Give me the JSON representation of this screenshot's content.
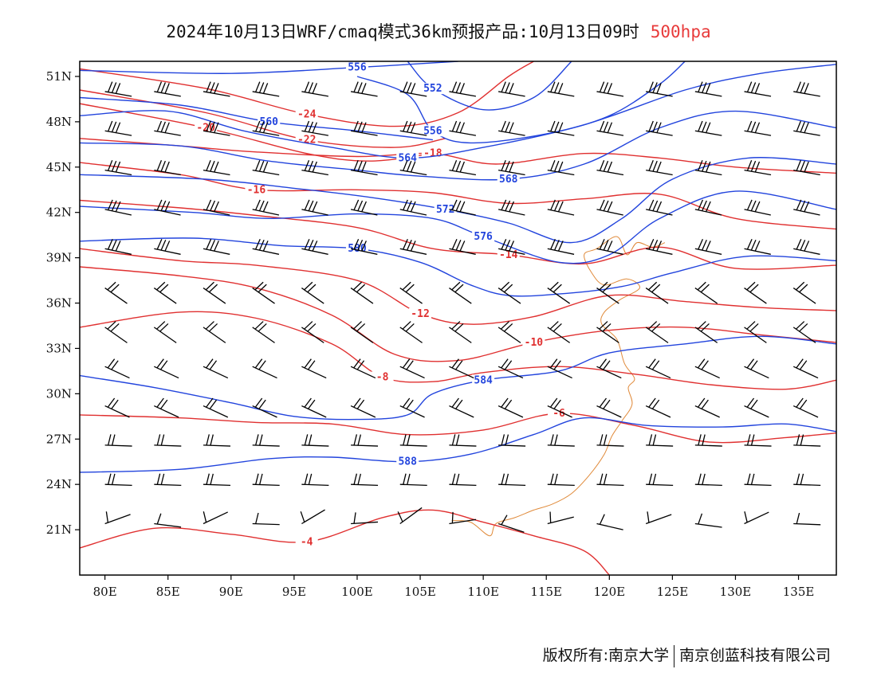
{
  "title": {
    "main": "2024年10月13日WRF/cmaq模式36km预报产品:10月13日09时",
    "level": "500hpa"
  },
  "credit": {
    "left": "版权所有:南京大学",
    "right": "南京创蓝科技有限公司"
  },
  "map": {
    "lon_range": [
      78,
      138
    ],
    "lat_range": [
      18,
      52
    ],
    "x_ticks": [
      {
        "value": 80,
        "label": "80E"
      },
      {
        "value": 85,
        "label": "85E"
      },
      {
        "value": 90,
        "label": "90E"
      },
      {
        "value": 95,
        "label": "95E"
      },
      {
        "value": 100,
        "label": "100E"
      },
      {
        "value": 105,
        "label": "105E"
      },
      {
        "value": 110,
        "label": "110E"
      },
      {
        "value": 115,
        "label": "115E"
      },
      {
        "value": 120,
        "label": "120E"
      },
      {
        "value": 125,
        "label": "125E"
      },
      {
        "value": 130,
        "label": "130E"
      },
      {
        "value": 135,
        "label": "135E"
      }
    ],
    "y_ticks": [
      {
        "value": 21,
        "label": "21N"
      },
      {
        "value": 24,
        "label": "24N"
      },
      {
        "value": 27,
        "label": "27N"
      },
      {
        "value": 30,
        "label": "30N"
      },
      {
        "value": 33,
        "label": "33N"
      },
      {
        "value": 36,
        "label": "36N"
      },
      {
        "value": 39,
        "label": "39N"
      },
      {
        "value": 42,
        "label": "42N"
      },
      {
        "value": 45,
        "label": "45N"
      },
      {
        "value": 48,
        "label": "48N"
      },
      {
        "value": 51,
        "label": "51N"
      }
    ],
    "colors": {
      "height": "#2244dd",
      "temperature": "#e03030",
      "boundary": "#e08a3a",
      "wind": "#000000"
    },
    "height_contours": [
      {
        "value": "556",
        "points": [
          [
            78,
            51.4
          ],
          [
            90,
            51.2
          ],
          [
            100,
            51.6
          ],
          [
            108,
            52
          ]
        ]
      },
      {
        "value": "552",
        "points": [
          [
            104,
            52
          ],
          [
            106,
            50.2
          ],
          [
            110,
            48.8
          ],
          [
            114,
            49.6
          ],
          [
            117,
            52
          ]
        ]
      },
      {
        "value": "556",
        "points": [
          [
            100,
            51
          ],
          [
            104,
            49.8
          ],
          [
            106,
            47.4
          ],
          [
            109,
            46.6
          ],
          [
            115,
            47.2
          ],
          [
            120,
            48.4
          ],
          [
            124,
            50.5
          ],
          [
            126,
            52
          ]
        ]
      },
      {
        "value": "560",
        "points": [
          [
            78,
            49.6
          ],
          [
            86,
            49.1
          ],
          [
            93,
            48
          ],
          [
            100,
            47.4
          ],
          [
            106,
            46.8
          ]
        ]
      },
      {
        "value": "564",
        "points": [
          [
            78,
            48.4
          ],
          [
            85,
            48.7
          ],
          [
            91,
            47.4
          ],
          [
            98,
            46.3
          ],
          [
            104,
            45.6
          ],
          [
            110,
            46.3
          ],
          [
            118,
            47.8
          ],
          [
            126,
            50.1
          ],
          [
            132,
            51.2
          ],
          [
            138,
            51.8
          ]
        ]
      },
      {
        "value": "568",
        "points": [
          [
            78,
            46.6
          ],
          [
            86,
            46.4
          ],
          [
            93,
            45.4
          ],
          [
            100,
            44.8
          ],
          [
            105,
            44.4
          ],
          [
            112,
            44.2
          ],
          [
            118,
            45.2
          ],
          [
            124,
            47.6
          ],
          [
            130,
            48.7
          ],
          [
            138,
            47.6
          ]
        ]
      },
      {
        "value": "572",
        "points": [
          [
            78,
            44.5
          ],
          [
            88,
            44.2
          ],
          [
            95,
            43.6
          ],
          [
            101,
            43
          ],
          [
            107,
            42.2
          ],
          [
            112,
            41.3
          ],
          [
            117,
            40
          ],
          [
            121,
            41.6
          ],
          [
            125,
            44.2
          ],
          [
            131,
            45.6
          ],
          [
            138,
            45.2
          ]
        ]
      },
      {
        "value": "576",
        "points": [
          [
            78,
            42.4
          ],
          [
            87,
            42
          ],
          [
            93,
            41.6
          ],
          [
            100,
            41.9
          ],
          [
            106,
            41.6
          ],
          [
            110,
            40.4
          ],
          [
            116,
            38.7
          ],
          [
            120,
            39.2
          ],
          [
            124,
            41.6
          ],
          [
            130,
            43.4
          ],
          [
            138,
            42.2
          ]
        ]
      },
      {
        "value": "580",
        "points": [
          [
            78,
            40.1
          ],
          [
            87,
            40.3
          ],
          [
            94,
            39.8
          ],
          [
            100,
            39.6
          ],
          [
            105,
            38.7
          ],
          [
            109,
            37.2
          ],
          [
            112,
            36.5
          ],
          [
            116,
            36.6
          ],
          [
            121,
            37.1
          ],
          [
            125,
            38
          ],
          [
            131,
            39.1
          ],
          [
            138,
            38.8
          ]
        ]
      },
      {
        "value": "584",
        "points": [
          [
            78,
            31.2
          ],
          [
            84,
            30.4
          ],
          [
            90,
            29.4
          ],
          [
            95,
            28.5
          ],
          [
            100,
            28.3
          ],
          [
            104,
            28.6
          ],
          [
            106,
            30
          ],
          [
            110,
            30.9
          ],
          [
            116,
            31.5
          ],
          [
            120,
            32.7
          ],
          [
            126,
            33.3
          ],
          [
            132,
            33.8
          ],
          [
            138,
            33.3
          ]
        ]
      },
      {
        "value": "588",
        "points": [
          [
            78,
            24.8
          ],
          [
            86,
            25
          ],
          [
            93,
            25.7
          ],
          [
            98,
            25.8
          ],
          [
            104,
            25.5
          ],
          [
            109,
            26
          ],
          [
            114,
            27.3
          ],
          [
            118,
            28.4
          ],
          [
            123,
            27.9
          ],
          [
            129,
            27.8
          ],
          [
            134,
            28
          ],
          [
            138,
            27.5
          ]
        ]
      }
    ],
    "temperature_contours": [
      {
        "value": "-24",
        "points": [
          [
            78,
            51.5
          ],
          [
            88,
            50.2
          ],
          [
            96,
            48.5
          ],
          [
            103,
            47.7
          ],
          [
            108,
            48.6
          ],
          [
            112,
            51
          ],
          [
            114,
            52
          ]
        ]
      },
      {
        "value": "-22",
        "points": [
          [
            78,
            50.1
          ],
          [
            88,
            48.6
          ],
          [
            96,
            46.8
          ],
          [
            103,
            46.3
          ],
          [
            107,
            46.9
          ]
        ]
      },
      {
        "value": "-20",
        "points": [
          [
            78,
            49.2
          ],
          [
            88,
            47.6
          ],
          [
            96,
            45.9
          ],
          [
            101,
            45.4
          ],
          [
            106,
            45.9
          ]
        ]
      },
      {
        "value": "-18",
        "points": [
          [
            78,
            46.9
          ],
          [
            86,
            46.4
          ],
          [
            92,
            46
          ],
          [
            100,
            45.7
          ],
          [
            106,
            45.9
          ],
          [
            111,
            45.2
          ],
          [
            118,
            45.9
          ],
          [
            124,
            45.6
          ],
          [
            130,
            45
          ],
          [
            138,
            44.6
          ]
        ]
      },
      {
        "value": "-16",
        "points": [
          [
            78,
            45.3
          ],
          [
            86,
            44.5
          ],
          [
            92,
            43.5
          ],
          [
            100,
            43.5
          ],
          [
            106,
            43.3
          ],
          [
            112,
            42.6
          ],
          [
            118,
            42.9
          ],
          [
            124,
            43.2
          ],
          [
            130,
            41.6
          ],
          [
            138,
            40.9
          ]
        ]
      },
      {
        "value": "-14",
        "points": [
          [
            78,
            42.8
          ],
          [
            86,
            42.3
          ],
          [
            92,
            41.8
          ],
          [
            100,
            41
          ],
          [
            106,
            39.6
          ],
          [
            112,
            39.2
          ],
          [
            118,
            38.6
          ],
          [
            124,
            39.7
          ],
          [
            130,
            38.3
          ],
          [
            138,
            38.5
          ]
        ]
      },
      {
        "value": "-12",
        "points": [
          [
            78,
            39.6
          ],
          [
            86,
            38.8
          ],
          [
            92,
            38.5
          ],
          [
            100,
            37.5
          ],
          [
            105,
            35.3
          ],
          [
            109,
            34.6
          ],
          [
            114,
            35.1
          ],
          [
            120,
            36.5
          ],
          [
            126,
            36.1
          ],
          [
            132,
            35.7
          ],
          [
            138,
            35.5
          ]
        ]
      },
      {
        "value": "-10",
        "points": [
          [
            78,
            38.4
          ],
          [
            86,
            37.8
          ],
          [
            92,
            37
          ],
          [
            98,
            35.2
          ],
          [
            103,
            32.6
          ],
          [
            108,
            32.2
          ],
          [
            114,
            33.4
          ],
          [
            120,
            34.2
          ],
          [
            126,
            34.4
          ],
          [
            132,
            33.9
          ],
          [
            138,
            33.4
          ]
        ]
      },
      {
        "value": "-8",
        "points": [
          [
            78,
            34.4
          ],
          [
            86,
            35.4
          ],
          [
            92,
            35
          ],
          [
            98,
            33.3
          ],
          [
            102,
            31.1
          ],
          [
            106,
            30.8
          ],
          [
            110,
            31.4
          ],
          [
            116,
            31.8
          ],
          [
            122,
            31.3
          ],
          [
            128,
            30.6
          ],
          [
            134,
            30.3
          ],
          [
            138,
            30.9
          ]
        ]
      },
      {
        "value": "-6",
        "points": [
          [
            78,
            28.6
          ],
          [
            86,
            28.4
          ],
          [
            92,
            28.1
          ],
          [
            98,
            28
          ],
          [
            104,
            27.3
          ],
          [
            110,
            27.6
          ],
          [
            116,
            28.7
          ],
          [
            122,
            27.9
          ],
          [
            128,
            26.8
          ],
          [
            134,
            27.1
          ],
          [
            138,
            27.4
          ]
        ]
      },
      {
        "value": "-4",
        "points": [
          [
            78,
            19.8
          ],
          [
            84,
            21.1
          ],
          [
            90,
            20.7
          ],
          [
            96,
            20.2
          ],
          [
            102,
            21.8
          ],
          [
            106,
            22.3
          ],
          [
            110,
            21.5
          ],
          [
            114,
            20.6
          ],
          [
            118,
            19.6
          ],
          [
            120,
            18
          ]
        ]
      }
    ],
    "label_positions_note": "",
    "coastline": [
      [
        107.5,
        21.6
      ],
      [
        109,
        21.5
      ],
      [
        110.5,
        20.6
      ],
      [
        111,
        21.4
      ],
      [
        112.5,
        21.8
      ],
      [
        114,
        22.3
      ],
      [
        115.5,
        22.7
      ],
      [
        117,
        23.4
      ],
      [
        118.4,
        24.6
      ],
      [
        119.6,
        26
      ],
      [
        120.2,
        27.2
      ],
      [
        121,
        28.2
      ],
      [
        121.8,
        29.3
      ],
      [
        121.5,
        30.4
      ],
      [
        122,
        31
      ],
      [
        121.2,
        32
      ],
      [
        120.6,
        33.6
      ],
      [
        119.4,
        34.6
      ],
      [
        119.6,
        35.4
      ],
      [
        120.8,
        36.2
      ],
      [
        122.4,
        37
      ],
      [
        121.4,
        37.6
      ],
      [
        119.6,
        37.2
      ],
      [
        118.6,
        38
      ],
      [
        118,
        39.2
      ],
      [
        119,
        39.6
      ],
      [
        120.6,
        40.4
      ],
      [
        121.4,
        39.2
      ],
      [
        122.2,
        40
      ],
      [
        123.4,
        39.7
      ],
      [
        124.4,
        40
      ]
    ],
    "wind_barbs_note": ""
  }
}
